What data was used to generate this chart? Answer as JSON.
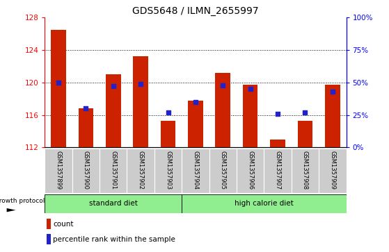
{
  "title": "GDS5648 / ILMN_2655997",
  "samples": [
    "GSM1357899",
    "GSM1357900",
    "GSM1357901",
    "GSM1357902",
    "GSM1357903",
    "GSM1357904",
    "GSM1357905",
    "GSM1357906",
    "GSM1357907",
    "GSM1357908",
    "GSM1357909"
  ],
  "counts": [
    126.5,
    116.8,
    121.0,
    123.2,
    115.3,
    117.8,
    121.2,
    119.7,
    113.0,
    115.3,
    119.7
  ],
  "percentiles": [
    50,
    30,
    47,
    49,
    27,
    35,
    48,
    45,
    26,
    27,
    43
  ],
  "ylim_left": [
    112,
    128
  ],
  "ylim_right": [
    0,
    100
  ],
  "yticks_left": [
    112,
    116,
    120,
    124,
    128
  ],
  "yticks_right": [
    0,
    25,
    50,
    75,
    100
  ],
  "ytick_labels_right": [
    "0%",
    "25%",
    "50%",
    "75%",
    "100%"
  ],
  "bar_color": "#cc2200",
  "dot_color": "#2222cc",
  "bar_bottom": 112,
  "group1_label": "standard diet",
  "group2_label": "high calorie diet",
  "group1_indices": [
    0,
    1,
    2,
    3,
    4
  ],
  "group2_indices": [
    5,
    6,
    7,
    8,
    9,
    10
  ],
  "group_label_prefix": "growth protocol",
  "group_bg_color": "#90ee90",
  "tick_area_bg": "#cccccc",
  "legend_count_label": "count",
  "legend_pct_label": "percentile rank within the sample",
  "title_fontsize": 10,
  "tick_fontsize": 7.5,
  "bar_width": 0.55
}
